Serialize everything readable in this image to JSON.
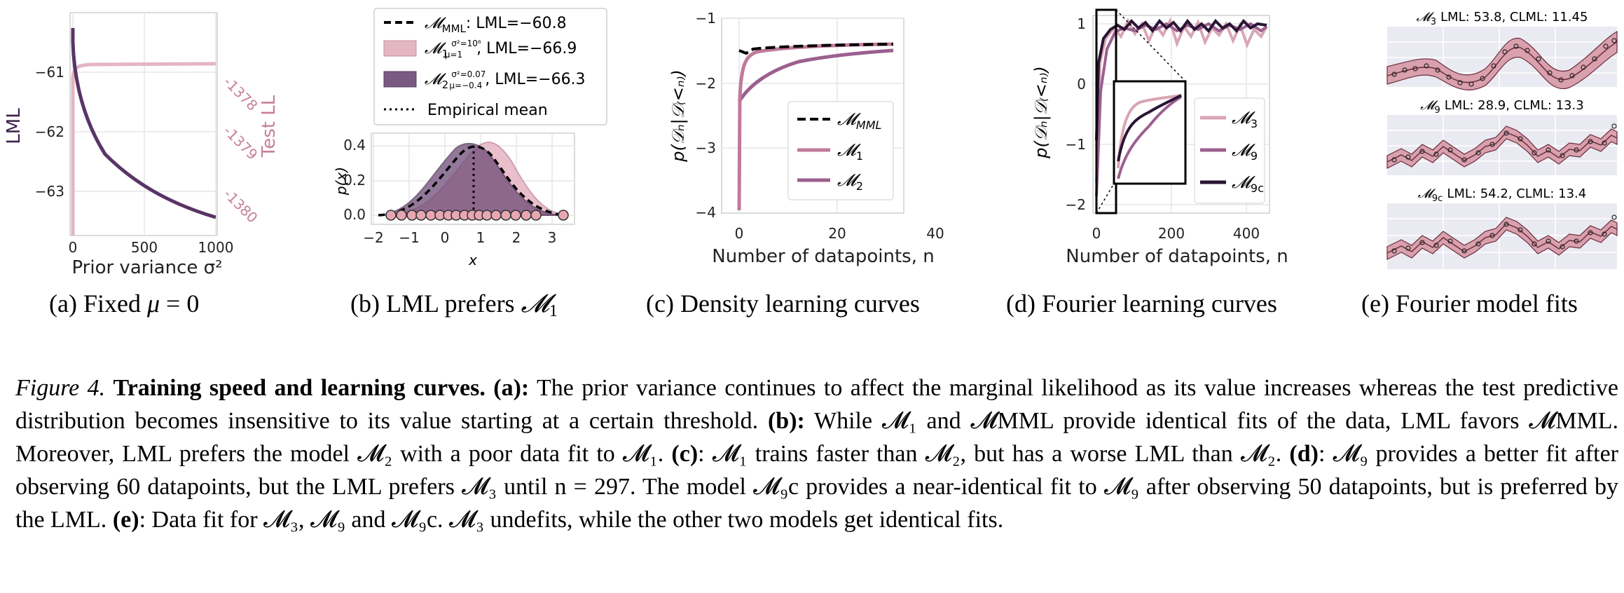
{
  "colors": {
    "dark": "#3b1f49",
    "mid": "#9c5f8f",
    "light": "#e4b5c2",
    "pink": "#d8a6b2",
    "grid": "#e6e6ea",
    "fourier_bg": "#eaeaf2"
  },
  "panel_a": {
    "xlabel": "Prior variance σ²",
    "ylabel_left": "LML",
    "ylabel_right": "Test LL",
    "xticks": [
      "0",
      "500",
      "1000"
    ],
    "yticks_left": [
      "−61",
      "−62",
      "−63"
    ],
    "yticks_right": [
      "-1378",
      "-1379",
      "-1380"
    ],
    "caption": "(a) Fixed μ = 0"
  },
  "panel_b": {
    "legend": [
      {
        "model": "𝓜",
        "sub": "MML",
        "text": ": LML=−60.8"
      },
      {
        "model": "𝓜",
        "sub": "1",
        "params_top": "σ²=10⁶",
        "params_bot": "μ=1",
        "text": ", LML=−66.9"
      },
      {
        "model": "𝓜",
        "sub": "2",
        "params_top": "σ²=0.07",
        "params_bot": "μ=−0.4",
        "text": ", LML=−66.3"
      },
      {
        "text": "Empirical mean"
      }
    ],
    "ylabel": "p(x)",
    "xlabel": "x",
    "xticks": [
      "−2",
      "−1",
      "0",
      "1",
      "2",
      "3"
    ],
    "yticks": [
      "0.4",
      "0.2",
      "0.0"
    ],
    "caption": "(b) LML prefers 𝓜₁"
  },
  "panel_c": {
    "ylabel": "p(𝒟ₙ|𝒟₍<ₙ₎)",
    "xlabel": "Number of datapoints, n",
    "xticks": [
      "0",
      "20",
      "40"
    ],
    "yticks": [
      "−1",
      "−2",
      "−3",
      "−4"
    ],
    "legend": [
      "𝓜MML",
      "𝓜₁",
      "𝓜₂"
    ],
    "legend_subs": [
      "MML",
      "1",
      "2"
    ],
    "caption": "(c) Density learning curves"
  },
  "panel_d": {
    "ylabel": "p(𝒟ₙ|𝒟₍<ₙ₎)",
    "xlabel": "Number of datapoints, n",
    "xticks": [
      "0",
      "200",
      "400"
    ],
    "yticks": [
      "1",
      "0",
      "−1",
      "−2"
    ],
    "legend_subs": [
      "3",
      "9",
      "9c"
    ],
    "caption": "(d) Fourier learning curves"
  },
  "panel_e": {
    "fits": [
      {
        "sub": "3",
        "text": "LML: 53.8, CLML: 11.45"
      },
      {
        "sub": "9",
        "text": "LML: 28.9, CLML: 13.3"
      },
      {
        "sub": "9c",
        "text": "LML: 54.2, CLML: 13.4"
      }
    ],
    "caption": "(e) Fourier model fits"
  },
  "caption": {
    "label": "Figure 4.",
    "title": "Training speed and learning curves.",
    "a_label": "(a):",
    "a_text": "The prior variance continues to affect the marginal likelihood as its value increases whereas the test predictive distribution becomes insensitive to its value starting at a certain threshold.",
    "b_label": "(b):",
    "b_text": "While 𝓜₁ and 𝓜MML provide identical fits of the data, LML favors 𝓜MML. Moreover, LML prefers the model 𝓜₂ with a poor data fit to 𝓜₁.",
    "c_label": "(c)",
    "c_text": ": 𝓜₁ trains faster than 𝓜₂, but has a worse LML than 𝓜₂.",
    "d_label": "(d)",
    "d_text": ": 𝓜₉ provides a better fit after observing 60 datapoints, but the LML prefers 𝓜₃ until n = 297. The model 𝓜₉c provides a near-identical fit to 𝓜₉ after observing 50 datapoints, but is preferred by the LML.",
    "e_label": "(e)",
    "e_text": ": Data fit for 𝓜₃, 𝓜₉ and 𝓜₉c. 𝓜₃ undefits, while the other two models get identical fits."
  }
}
